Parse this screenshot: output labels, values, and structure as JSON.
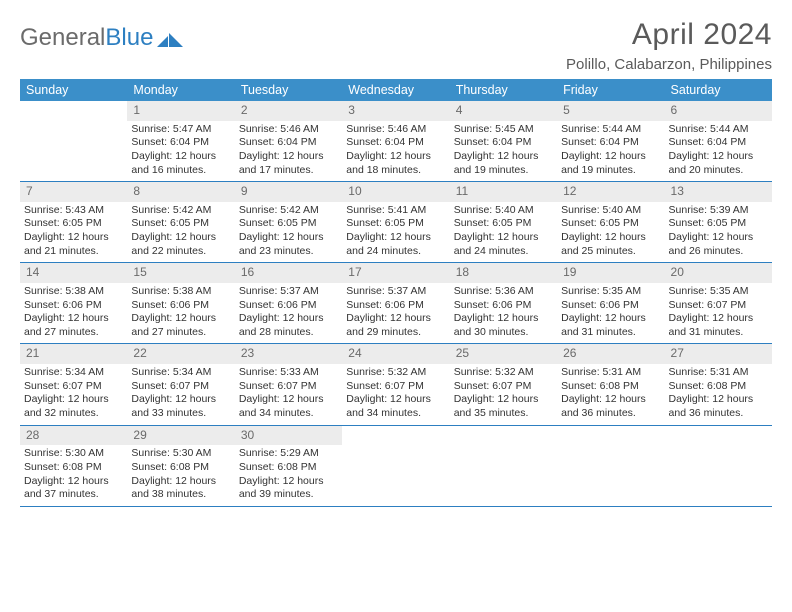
{
  "brand": {
    "text1": "General",
    "text2": "Blue",
    "color1": "#6b6b6b",
    "color2": "#2d7fc1"
  },
  "title": "April 2024",
  "location": "Polillo, Calabarzon, Philippines",
  "header_bg": "#3b8fc9",
  "daynum_bg": "#ececec",
  "border_color": "#2d7fc1",
  "dow": [
    "Sunday",
    "Monday",
    "Tuesday",
    "Wednesday",
    "Thursday",
    "Friday",
    "Saturday"
  ],
  "weeks": [
    [
      {
        "n": "",
        "lines": []
      },
      {
        "n": "1",
        "lines": [
          "Sunrise: 5:47 AM",
          "Sunset: 6:04 PM",
          "Daylight: 12 hours",
          "and 16 minutes."
        ]
      },
      {
        "n": "2",
        "lines": [
          "Sunrise: 5:46 AM",
          "Sunset: 6:04 PM",
          "Daylight: 12 hours",
          "and 17 minutes."
        ]
      },
      {
        "n": "3",
        "lines": [
          "Sunrise: 5:46 AM",
          "Sunset: 6:04 PM",
          "Daylight: 12 hours",
          "and 18 minutes."
        ]
      },
      {
        "n": "4",
        "lines": [
          "Sunrise: 5:45 AM",
          "Sunset: 6:04 PM",
          "Daylight: 12 hours",
          "and 19 minutes."
        ]
      },
      {
        "n": "5",
        "lines": [
          "Sunrise: 5:44 AM",
          "Sunset: 6:04 PM",
          "Daylight: 12 hours",
          "and 19 minutes."
        ]
      },
      {
        "n": "6",
        "lines": [
          "Sunrise: 5:44 AM",
          "Sunset: 6:04 PM",
          "Daylight: 12 hours",
          "and 20 minutes."
        ]
      }
    ],
    [
      {
        "n": "7",
        "lines": [
          "Sunrise: 5:43 AM",
          "Sunset: 6:05 PM",
          "Daylight: 12 hours",
          "and 21 minutes."
        ]
      },
      {
        "n": "8",
        "lines": [
          "Sunrise: 5:42 AM",
          "Sunset: 6:05 PM",
          "Daylight: 12 hours",
          "and 22 minutes."
        ]
      },
      {
        "n": "9",
        "lines": [
          "Sunrise: 5:42 AM",
          "Sunset: 6:05 PM",
          "Daylight: 12 hours",
          "and 23 minutes."
        ]
      },
      {
        "n": "10",
        "lines": [
          "Sunrise: 5:41 AM",
          "Sunset: 6:05 PM",
          "Daylight: 12 hours",
          "and 24 minutes."
        ]
      },
      {
        "n": "11",
        "lines": [
          "Sunrise: 5:40 AM",
          "Sunset: 6:05 PM",
          "Daylight: 12 hours",
          "and 24 minutes."
        ]
      },
      {
        "n": "12",
        "lines": [
          "Sunrise: 5:40 AM",
          "Sunset: 6:05 PM",
          "Daylight: 12 hours",
          "and 25 minutes."
        ]
      },
      {
        "n": "13",
        "lines": [
          "Sunrise: 5:39 AM",
          "Sunset: 6:05 PM",
          "Daylight: 12 hours",
          "and 26 minutes."
        ]
      }
    ],
    [
      {
        "n": "14",
        "lines": [
          "Sunrise: 5:38 AM",
          "Sunset: 6:06 PM",
          "Daylight: 12 hours",
          "and 27 minutes."
        ]
      },
      {
        "n": "15",
        "lines": [
          "Sunrise: 5:38 AM",
          "Sunset: 6:06 PM",
          "Daylight: 12 hours",
          "and 27 minutes."
        ]
      },
      {
        "n": "16",
        "lines": [
          "Sunrise: 5:37 AM",
          "Sunset: 6:06 PM",
          "Daylight: 12 hours",
          "and 28 minutes."
        ]
      },
      {
        "n": "17",
        "lines": [
          "Sunrise: 5:37 AM",
          "Sunset: 6:06 PM",
          "Daylight: 12 hours",
          "and 29 minutes."
        ]
      },
      {
        "n": "18",
        "lines": [
          "Sunrise: 5:36 AM",
          "Sunset: 6:06 PM",
          "Daylight: 12 hours",
          "and 30 minutes."
        ]
      },
      {
        "n": "19",
        "lines": [
          "Sunrise: 5:35 AM",
          "Sunset: 6:06 PM",
          "Daylight: 12 hours",
          "and 31 minutes."
        ]
      },
      {
        "n": "20",
        "lines": [
          "Sunrise: 5:35 AM",
          "Sunset: 6:07 PM",
          "Daylight: 12 hours",
          "and 31 minutes."
        ]
      }
    ],
    [
      {
        "n": "21",
        "lines": [
          "Sunrise: 5:34 AM",
          "Sunset: 6:07 PM",
          "Daylight: 12 hours",
          "and 32 minutes."
        ]
      },
      {
        "n": "22",
        "lines": [
          "Sunrise: 5:34 AM",
          "Sunset: 6:07 PM",
          "Daylight: 12 hours",
          "and 33 minutes."
        ]
      },
      {
        "n": "23",
        "lines": [
          "Sunrise: 5:33 AM",
          "Sunset: 6:07 PM",
          "Daylight: 12 hours",
          "and 34 minutes."
        ]
      },
      {
        "n": "24",
        "lines": [
          "Sunrise: 5:32 AM",
          "Sunset: 6:07 PM",
          "Daylight: 12 hours",
          "and 34 minutes."
        ]
      },
      {
        "n": "25",
        "lines": [
          "Sunrise: 5:32 AM",
          "Sunset: 6:07 PM",
          "Daylight: 12 hours",
          "and 35 minutes."
        ]
      },
      {
        "n": "26",
        "lines": [
          "Sunrise: 5:31 AM",
          "Sunset: 6:08 PM",
          "Daylight: 12 hours",
          "and 36 minutes."
        ]
      },
      {
        "n": "27",
        "lines": [
          "Sunrise: 5:31 AM",
          "Sunset: 6:08 PM",
          "Daylight: 12 hours",
          "and 36 minutes."
        ]
      }
    ],
    [
      {
        "n": "28",
        "lines": [
          "Sunrise: 5:30 AM",
          "Sunset: 6:08 PM",
          "Daylight: 12 hours",
          "and 37 minutes."
        ]
      },
      {
        "n": "29",
        "lines": [
          "Sunrise: 5:30 AM",
          "Sunset: 6:08 PM",
          "Daylight: 12 hours",
          "and 38 minutes."
        ]
      },
      {
        "n": "30",
        "lines": [
          "Sunrise: 5:29 AM",
          "Sunset: 6:08 PM",
          "Daylight: 12 hours",
          "and 39 minutes."
        ]
      },
      {
        "n": "",
        "lines": []
      },
      {
        "n": "",
        "lines": []
      },
      {
        "n": "",
        "lines": []
      },
      {
        "n": "",
        "lines": []
      }
    ]
  ]
}
